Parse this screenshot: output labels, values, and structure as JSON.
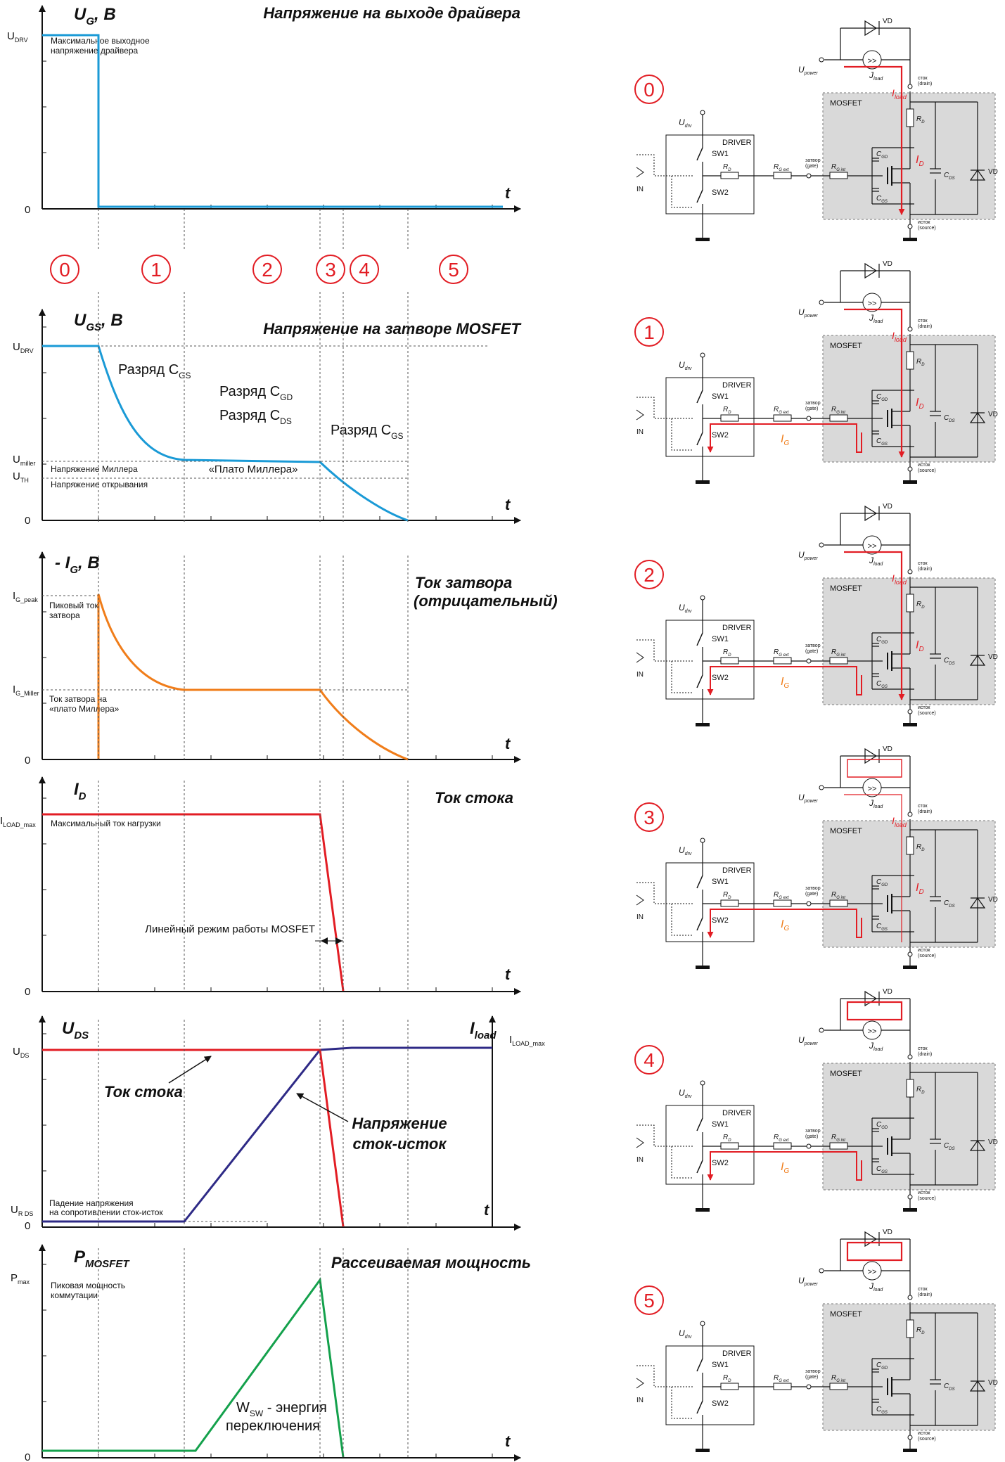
{
  "phases": [
    "0",
    "1",
    "2",
    "3",
    "4",
    "5"
  ],
  "panels": [
    {
      "id": "ug",
      "ylabel": "U",
      "ylabel_sub": "G",
      "ylabel_unit": ", В",
      "title": "Напряжение на выходе драйвера",
      "tick_top": "U",
      "tick_top_sub": "DRV",
      "note": [
        "Максимальное выходное",
        "напряжение драйвера"
      ],
      "zero": "0",
      "t": "t",
      "color": "#1a9ad6",
      "points": [
        [
          "t0",
          1.0
        ],
        [
          "t1",
          1.0
        ],
        [
          "t1",
          0.0
        ],
        [
          "t9",
          0.0
        ]
      ]
    },
    {
      "id": "ugs",
      "ylabel": "U",
      "ylabel_sub": "GS",
      "ylabel_unit": ", В",
      "title": "Напряжение на затворе MOSFET",
      "tick_top": "U",
      "tick_top_sub": "DRV",
      "tick_miller": "U",
      "tick_miller_sub": "miller",
      "tick_th": "U",
      "tick_th_sub": "TH",
      "note_miller": "Напряжение Миллера",
      "note_th": "Напряжение открывания",
      "plateau": "«Плато Миллера»",
      "ann": [
        {
          "text": "Разряд C",
          "sub": "GS"
        },
        {
          "text": "Разряд C",
          "sub": "GD"
        },
        {
          "text": "Разряд C",
          "sub": "DS"
        },
        {
          "text": "Разряд C",
          "sub": "GS"
        }
      ],
      "zero": "0",
      "t": "t",
      "color": "#1a9ad6"
    },
    {
      "id": "ig",
      "ylabel": "- I",
      "ylabel_sub": "G",
      "ylabel_unit": ", В",
      "title": [
        "Ток затвора",
        "(отрицательный)"
      ],
      "tick_peak": "I",
      "tick_peak_sub": "G_peak",
      "tick_miller": "I",
      "tick_miller_sub": "G_Miller",
      "note_peak": [
        "Пиковый ток",
        "затвора"
      ],
      "note_miller": [
        "Ток затвора на",
        "«плато Миллера»"
      ],
      "zero": "0",
      "t": "t",
      "color": "#f07d1a"
    },
    {
      "id": "id",
      "ylabel": "I",
      "ylabel_sub": "D",
      "title": "Ток стока",
      "tick_top": "I",
      "tick_top_sub": "LOAD_max",
      "note": "Максимальный ток нагрузки",
      "linear": "Линейный режим работы MOSFET",
      "zero": "0",
      "t": "t",
      "color": "#e21d24"
    },
    {
      "id": "uds",
      "ylabel": "U",
      "ylabel_sub": "DS",
      "ylabel_right": "I",
      "ylabel_right_sub": "load",
      "tick_right": "I",
      "tick_right_sub": "LOAD_max",
      "tick_top": "U",
      "tick_top_sub": "DS",
      "tick_bottom": "U",
      "tick_bottom_sub": "R DS",
      "note": [
        "Падение напряжения",
        "на сопротивлении сток-исток"
      ],
      "label_current": "Ток стока",
      "label_voltage": [
        "Напряжение",
        "сток-исток"
      ],
      "zero": "0",
      "t": "t",
      "color_current": "#e21d24",
      "color_voltage": "#2e2a86"
    },
    {
      "id": "pm",
      "ylabel": "P",
      "ylabel_sub": "MOSFET",
      "title": "Рассеиваемая мощность",
      "tick_top": "P",
      "tick_top_sub": "max",
      "note": [
        "Пиковая мощность",
        "коммутации"
      ],
      "energy": "W",
      "energy_sub": "SW",
      "energy_rest": " - энергия",
      "energy_line2": "переключения",
      "zero": "0",
      "t": "t",
      "color": "#14a14c"
    }
  ],
  "circuit": {
    "udrv": "U",
    "udrv_sub": "drv",
    "driver": "DRIVER",
    "sw1": "SW1",
    "sw2": "SW2",
    "rd": "R",
    "rd_sub": "D",
    "rgext": "R",
    "rgext_sub": "G ext",
    "rgint": "R",
    "rgint_sub": "G int",
    "gate": [
      "затвор",
      "(gate)"
    ],
    "drain": [
      "сток",
      "(drain)"
    ],
    "source": [
      "исток",
      "(source)"
    ],
    "mosfet": "MOSFET",
    "cgd": "C",
    "cgd_sub": "GD",
    "cgs": "C",
    "cgs_sub": "GS",
    "cds": "C",
    "cds_sub": "DS",
    "vd": "VD",
    "in": "IN",
    "upower": "U",
    "upower_sub": "power",
    "jload": "J",
    "jload_sub": "load",
    "iload": "I",
    "iload_sub": "load",
    "id_label": "I",
    "id_sub": "D",
    "ig": "I",
    "ig_sub": "G",
    "red": "#e21d24",
    "orange": "#f07d1a"
  }
}
